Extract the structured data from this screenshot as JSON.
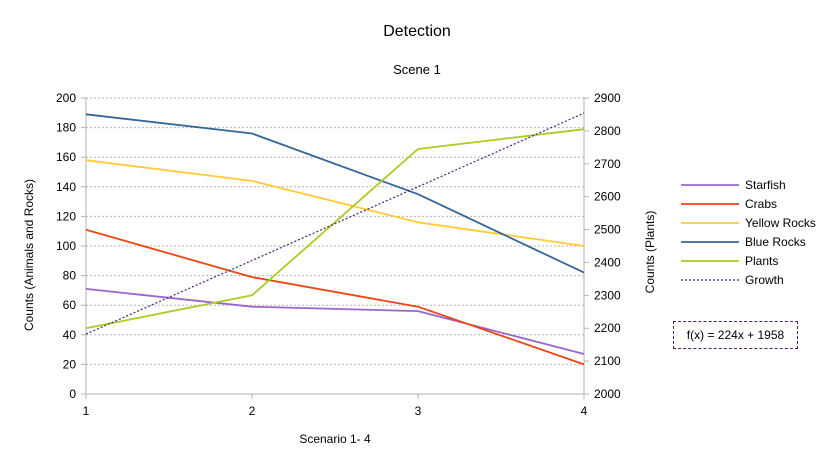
{
  "chart_data": {
    "type": "line",
    "title": "Detection",
    "subtitle": "Scene 1",
    "xlabel": "Scenario 1- 4",
    "ylabel": "Counts (Animals and Rocks)",
    "y2label": "Counts (Plants)",
    "x": [
      1,
      2,
      3,
      4
    ],
    "xlim": [
      1,
      4
    ],
    "ylim": [
      0,
      200
    ],
    "y2lim": [
      2000,
      2900
    ],
    "y_ticks": [
      0,
      20,
      40,
      60,
      80,
      100,
      120,
      140,
      160,
      180,
      200
    ],
    "y2_ticks": [
      2000,
      2100,
      2200,
      2300,
      2400,
      2500,
      2600,
      2700,
      2800,
      2900
    ],
    "grid": true,
    "legend_position": "right",
    "series": [
      {
        "name": "Starfish",
        "axis": "left",
        "color": "#9966cc",
        "values": [
          71,
          59,
          56,
          27
        ]
      },
      {
        "name": "Crabs",
        "axis": "left",
        "color": "#ee4411",
        "values": [
          111,
          79,
          59,
          20
        ]
      },
      {
        "name": "Yellow Rocks",
        "axis": "left",
        "color": "#ffcc33",
        "values": [
          158,
          144,
          116,
          100
        ]
      },
      {
        "name": "Blue Rocks",
        "axis": "left",
        "color": "#336699",
        "values": [
          189,
          176,
          135,
          82
        ]
      },
      {
        "name": "Plants",
        "axis": "right",
        "color": "#aacc22",
        "values": [
          2200,
          2300,
          2745,
          2805
        ]
      },
      {
        "name": "Growth",
        "axis": "right",
        "color": "#4b1f6f",
        "dashed": true,
        "trendline": true,
        "values": [
          2182,
          2406,
          2630,
          2854
        ]
      }
    ],
    "trendline_equation": "f(x) = 224x + 1958"
  }
}
